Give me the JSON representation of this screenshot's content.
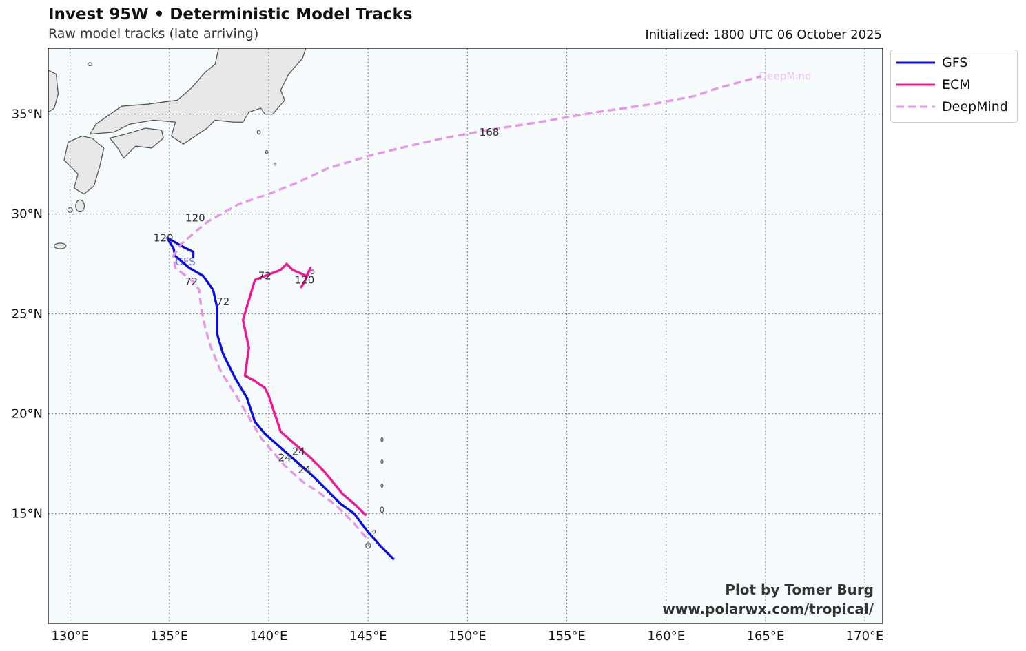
{
  "header": {
    "title": "Invest 95W • Deterministic Model Tracks",
    "subtitle": "Raw model tracks (late arriving)",
    "initialized": "Initialized: 1800 UTC 06 October 2025"
  },
  "credit": {
    "line1": "Plot by Tomer Burg",
    "line2": "www.polarwx.com/tropical/"
  },
  "colors": {
    "ocean": "#f6fcfd",
    "land": "#e8e8e8",
    "coast": "#555555",
    "grid": "#888888",
    "gfs": "#0a0ae6",
    "ecm": "#f2159a",
    "deepmind": "#e896e8"
  },
  "map": {
    "lon_range": [
      128.9,
      170.9
    ],
    "lat_range": [
      9.5,
      38.3
    ],
    "lon_ticks": [
      130,
      135,
      140,
      145,
      150,
      155,
      160,
      165,
      170
    ],
    "lat_ticks": [
      15,
      20,
      25,
      30,
      35
    ],
    "lon_labels": [
      "130°E",
      "135°E",
      "140°E",
      "145°E",
      "150°E",
      "155°E",
      "160°E",
      "165°E",
      "170°E"
    ],
    "lat_labels": [
      "15°N",
      "20°N",
      "25°N",
      "30°N",
      "35°N"
    ]
  },
  "legend": [
    {
      "name": "GFS",
      "color": "#0a0ae6",
      "dash": false
    },
    {
      "name": "ECM",
      "color": "#f2159a",
      "dash": false
    },
    {
      "name": "DeepMind",
      "color": "#e896e8",
      "dash": true
    }
  ],
  "chart_data": {
    "type": "map",
    "series": [
      {
        "name": "GFS",
        "track": [
          [
            146.3,
            12.7
          ],
          [
            145.6,
            13.4
          ],
          [
            144.9,
            14.2
          ],
          [
            144.3,
            15.0
          ],
          [
            143.6,
            15.5
          ],
          [
            142.9,
            16.2
          ],
          [
            142.2,
            16.9
          ],
          [
            141.4,
            17.6
          ],
          [
            140.6,
            18.3
          ],
          [
            139.8,
            19.0
          ],
          [
            139.3,
            19.6
          ],
          [
            138.9,
            20.8
          ],
          [
            138.3,
            21.8
          ],
          [
            137.7,
            23.0
          ],
          [
            137.4,
            24.0
          ],
          [
            137.4,
            25.3
          ],
          [
            137.2,
            26.2
          ],
          [
            136.7,
            26.9
          ],
          [
            136.0,
            27.3
          ],
          [
            135.3,
            27.9
          ],
          [
            135.2,
            28.3
          ],
          [
            135.0,
            28.6
          ],
          [
            134.9,
            28.8
          ],
          [
            135.6,
            28.4
          ],
          [
            136.2,
            28.1
          ],
          [
            136.2,
            27.8
          ]
        ],
        "labels": [
          {
            "text": "24",
            "lon": 141.8,
            "lat": 17.2
          },
          {
            "text": "72",
            "lon": 137.7,
            "lat": 25.6
          },
          {
            "text": "120",
            "lon": 134.7,
            "lat": 28.8
          },
          {
            "text": "GFS",
            "lon": 135.8,
            "lat": 27.6,
            "faded": true
          }
        ]
      },
      {
        "name": "ECM",
        "track": [
          [
            144.9,
            14.9
          ],
          [
            144.4,
            15.4
          ],
          [
            143.7,
            16.0
          ],
          [
            142.8,
            17.1
          ],
          [
            142.1,
            17.8
          ],
          [
            140.6,
            19.1
          ],
          [
            140.5,
            19.4
          ],
          [
            140.0,
            20.9
          ],
          [
            139.8,
            21.3
          ],
          [
            139.2,
            21.7
          ],
          [
            138.8,
            21.9
          ],
          [
            139.0,
            23.3
          ],
          [
            138.7,
            24.7
          ],
          [
            139.3,
            26.7
          ],
          [
            140.6,
            27.2
          ],
          [
            140.9,
            27.5
          ],
          [
            141.2,
            27.2
          ],
          [
            141.9,
            26.9
          ],
          [
            142.1,
            27.3
          ],
          [
            141.8,
            26.6
          ],
          [
            141.6,
            26.3
          ]
        ],
        "labels": [
          {
            "text": "24",
            "lon": 141.5,
            "lat": 18.1
          },
          {
            "text": "72",
            "lon": 139.8,
            "lat": 26.9
          },
          {
            "text": "120",
            "lon": 141.8,
            "lat": 26.7
          }
        ]
      },
      {
        "name": "DeepMind",
        "track": [
          [
            144.9,
            13.8
          ],
          [
            144.3,
            14.5
          ],
          [
            143.4,
            15.4
          ],
          [
            142.6,
            16.0
          ],
          [
            141.7,
            16.6
          ],
          [
            140.8,
            17.4
          ],
          [
            139.6,
            18.8
          ],
          [
            138.9,
            20.0
          ],
          [
            138.3,
            21.0
          ],
          [
            137.6,
            22.1
          ],
          [
            137.1,
            23.3
          ],
          [
            136.8,
            24.3
          ],
          [
            136.6,
            25.3
          ],
          [
            136.5,
            26.2
          ],
          [
            136.2,
            26.6
          ],
          [
            135.7,
            27.0
          ],
          [
            135.3,
            27.3
          ],
          [
            135.2,
            27.9
          ],
          [
            135.6,
            28.5
          ],
          [
            136.3,
            29.1
          ],
          [
            136.9,
            29.6
          ],
          [
            138.5,
            30.5
          ],
          [
            140.0,
            31.0
          ],
          [
            141.5,
            31.6
          ],
          [
            143.0,
            32.3
          ],
          [
            145.0,
            32.9
          ],
          [
            146.6,
            33.3
          ],
          [
            148.8,
            33.8
          ],
          [
            151.0,
            34.2
          ],
          [
            153.6,
            34.6
          ],
          [
            156.5,
            35.1
          ],
          [
            159.3,
            35.5
          ],
          [
            161.4,
            35.9
          ],
          [
            162.6,
            36.3
          ],
          [
            163.7,
            36.6
          ],
          [
            164.8,
            36.9
          ]
        ],
        "labels": [
          {
            "text": "24",
            "lon": 140.8,
            "lat": 17.8
          },
          {
            "text": "72",
            "lon": 136.1,
            "lat": 26.6
          },
          {
            "text": "120",
            "lon": 136.3,
            "lat": 29.8
          },
          {
            "text": "168",
            "lon": 151.1,
            "lat": 34.1
          },
          {
            "text": "DeepMind",
            "lon": 166.0,
            "lat": 36.9,
            "faded": true
          }
        ]
      }
    ],
    "xlabel": "",
    "ylabel": "",
    "grid": true,
    "legend_position": "outside top-right"
  }
}
